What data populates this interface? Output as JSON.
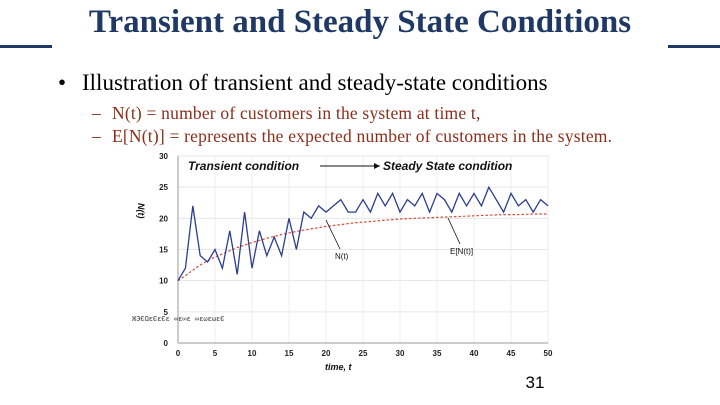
{
  "slide": {
    "title": "Transient and Steady State Conditions",
    "bullet": "Illustration of transient and steady-state conditions",
    "sub_bullets": [
      "N(t) = number of customers in the system at time t,",
      "E[N(t)] = represents the expected number of customers in the system."
    ],
    "page_number": "31",
    "colors": {
      "title": "#1f3864",
      "sub_text": "#8b2e1a",
      "nt_series": "#2b3d8f",
      "ent_series": "#d84a3a"
    }
  },
  "chart_data": {
    "type": "line",
    "xlabel": "time, t",
    "ylabel": "N(t)",
    "xlim": [
      0,
      50
    ],
    "ylim": [
      0,
      30
    ],
    "x_ticks": [
      "0",
      "5",
      "10",
      "15",
      "20",
      "25",
      "30",
      "35",
      "40",
      "45",
      "50"
    ],
    "y_ticks": [
      "0",
      "5",
      "10",
      "15",
      "20",
      "25",
      "30"
    ],
    "annotations": [
      "Transient condition",
      "Steady State condition"
    ],
    "left_scribble": "ЖЭЄΩεЄεЄε ∞ε∞ε  ∞εωεωεЄ",
    "series": [
      {
        "name": "N(t)",
        "x": [
          0,
          1,
          2,
          3,
          4,
          5,
          6,
          7,
          8,
          9,
          10,
          11,
          12,
          13,
          14,
          15,
          16,
          17,
          18,
          19,
          20,
          21,
          22,
          23,
          24,
          25,
          26,
          27,
          28,
          29,
          30,
          31,
          32,
          33,
          34,
          35,
          36,
          37,
          38,
          39,
          40,
          41,
          42,
          43,
          44,
          45,
          46,
          47,
          48,
          49,
          50
        ],
        "values": [
          10,
          12,
          22,
          14,
          13,
          15,
          12,
          18,
          11,
          21,
          12,
          18,
          14,
          17,
          14,
          20,
          15,
          21,
          20,
          22,
          21,
          22,
          23,
          21,
          21,
          23,
          21,
          24,
          22,
          24,
          21,
          23,
          22,
          24,
          21,
          24,
          23,
          21,
          24,
          22,
          24,
          22,
          25,
          23,
          21,
          24,
          22,
          23,
          21,
          23,
          22
        ]
      },
      {
        "name": "E[N(t)]",
        "x": [
          0,
          1,
          2,
          3,
          4,
          5,
          6,
          7,
          8,
          9,
          10,
          12,
          14,
          16,
          18,
          20,
          22,
          24,
          26,
          28,
          30,
          32,
          34,
          36,
          38,
          40,
          42,
          44,
          46,
          48,
          50
        ],
        "values": [
          10,
          10.8,
          11.7,
          12.5,
          13.2,
          13.8,
          14.3,
          14.8,
          15.3,
          15.7,
          16.1,
          16.8,
          17.4,
          17.9,
          18.3,
          18.7,
          19.0,
          19.3,
          19.5,
          19.7,
          19.9,
          20.0,
          20.1,
          20.2,
          20.3,
          20.4,
          20.5,
          20.6,
          20.6,
          20.7,
          20.7
        ]
      }
    ]
  }
}
